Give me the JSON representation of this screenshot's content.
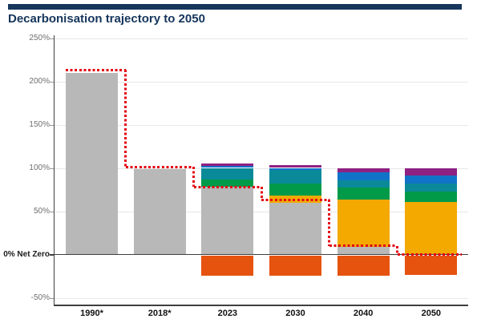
{
  "header": {
    "title": "Decarbonisation trajectory to 2050"
  },
  "colors": {
    "navy": "#16365c",
    "axis": "#3f3f3f",
    "grid": "#e7e7e7",
    "tick_label": "#6e6e6e",
    "category_label": "#111111"
  },
  "chart_data": {
    "type": "bar",
    "stacked": true,
    "title": "Decarbonisation trajectory to 2050",
    "categories": [
      "1990*",
      "2018*",
      "2023",
      "2030",
      "2040",
      "2050"
    ],
    "grid": true,
    "legend": "none",
    "y_axis": {
      "unit": "%",
      "range": [
        -60,
        260
      ],
      "ticks": [
        {
          "value": 250,
          "label": "250%"
        },
        {
          "value": 200,
          "label": "200%"
        },
        {
          "value": 150,
          "label": "150%"
        },
        {
          "value": 100,
          "label": "100%"
        },
        {
          "value": 50,
          "label": "50%"
        },
        {
          "value": 0,
          "label": "0% Net Zero",
          "emphasis": true
        },
        {
          "value": -50,
          "label": "-50%"
        }
      ]
    },
    "palette": {
      "gray": "#b8b8b8",
      "orange": "#e5530f",
      "amber": "#f3a900",
      "green": "#009a49",
      "teal": "#0a8a99",
      "blue": "#1173c7",
      "purple": "#8e2182"
    },
    "series": [
      {
        "name": "gray",
        "color": "gray",
        "values": [
          210,
          99,
          78,
          60,
          9,
          0
        ]
      },
      {
        "name": "amber",
        "color": "amber",
        "values": [
          0,
          0,
          0,
          8,
          54,
          61
        ]
      },
      {
        "name": "green",
        "color": "green",
        "values": [
          0,
          0,
          9,
          14,
          14,
          12
        ]
      },
      {
        "name": "teal",
        "color": "teal",
        "values": [
          0,
          0,
          13,
          16,
          9,
          9
        ]
      },
      {
        "name": "blue",
        "color": "blue",
        "values": [
          0,
          0,
          2,
          2,
          9,
          9
        ]
      },
      {
        "name": "purple",
        "color": "purple",
        "values": [
          0,
          0,
          3,
          3,
          5,
          9
        ]
      },
      {
        "name": "orange-negative",
        "color": "orange",
        "values": [
          0,
          0,
          -24,
          -24,
          -24,
          -23
        ]
      }
    ],
    "trajectory": {
      "name": "net-zero-trajectory",
      "style": "dotted-step",
      "color": "#e30613",
      "values": [
        213,
        101,
        78,
        63,
        10,
        0
      ]
    }
  }
}
